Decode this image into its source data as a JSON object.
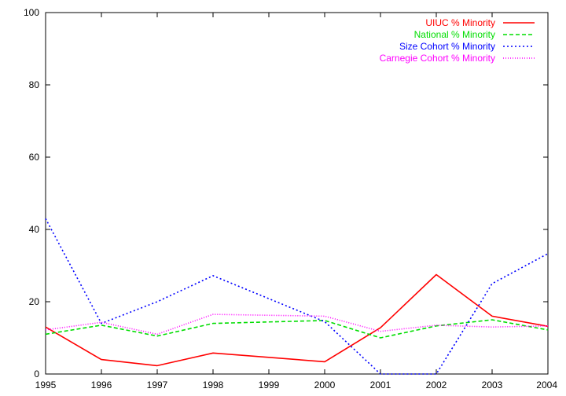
{
  "chart_data": {
    "type": "line",
    "title": "",
    "xlabel": "",
    "ylabel": "",
    "x": [
      1995,
      1996,
      1997,
      1998,
      1999,
      2000,
      2001,
      2002,
      2003,
      2004
    ],
    "xlim": [
      1995,
      2004
    ],
    "ylim": [
      0,
      100
    ],
    "x_ticks": [
      "1995",
      "1996",
      "1997",
      "1998",
      "1999",
      "2000",
      "2001",
      "2002",
      "2003",
      "2004"
    ],
    "y_ticks": [
      "0",
      "20",
      "40",
      "60",
      "80",
      "100"
    ],
    "grid": false,
    "legend_position": "top-right",
    "series": [
      {
        "name": "UIUC % Minority",
        "color": "#ff0000",
        "dash": "solid",
        "x": [
          1995,
          1996,
          1997,
          1998,
          2000,
          2001,
          2002,
          2003,
          2004
        ],
        "values": [
          13.0,
          4.0,
          2.3,
          5.8,
          3.4,
          12.8,
          27.5,
          16.0,
          13.2
        ]
      },
      {
        "name": "National % Minority",
        "color": "#00dd00",
        "dash": "dashed",
        "x": [
          1995,
          1996,
          1997,
          1998,
          2000,
          2001,
          2002,
          2003,
          2004
        ],
        "values": [
          11.0,
          13.5,
          10.5,
          14.0,
          14.8,
          10.0,
          13.3,
          15.0,
          12.2
        ]
      },
      {
        "name": "Size Cohort % Minority",
        "color": "#0000ff",
        "dash": "dotted",
        "x": [
          1995,
          1996,
          1997,
          1998,
          2000,
          2001,
          2002,
          2003,
          2004
        ],
        "values": [
          43.0,
          14.0,
          20.0,
          27.2,
          14.5,
          0,
          0,
          25.0,
          33.3
        ]
      },
      {
        "name": "Carnegie Cohort % Minority",
        "color": "#ff00ff",
        "dash": "fine-dotted",
        "x": [
          1995,
          1996,
          1997,
          1998,
          2000,
          2001,
          2002,
          2003,
          2004
        ],
        "values": [
          12.2,
          14.3,
          11.0,
          16.5,
          16.0,
          11.8,
          13.5,
          13.0,
          13.3
        ]
      }
    ]
  }
}
